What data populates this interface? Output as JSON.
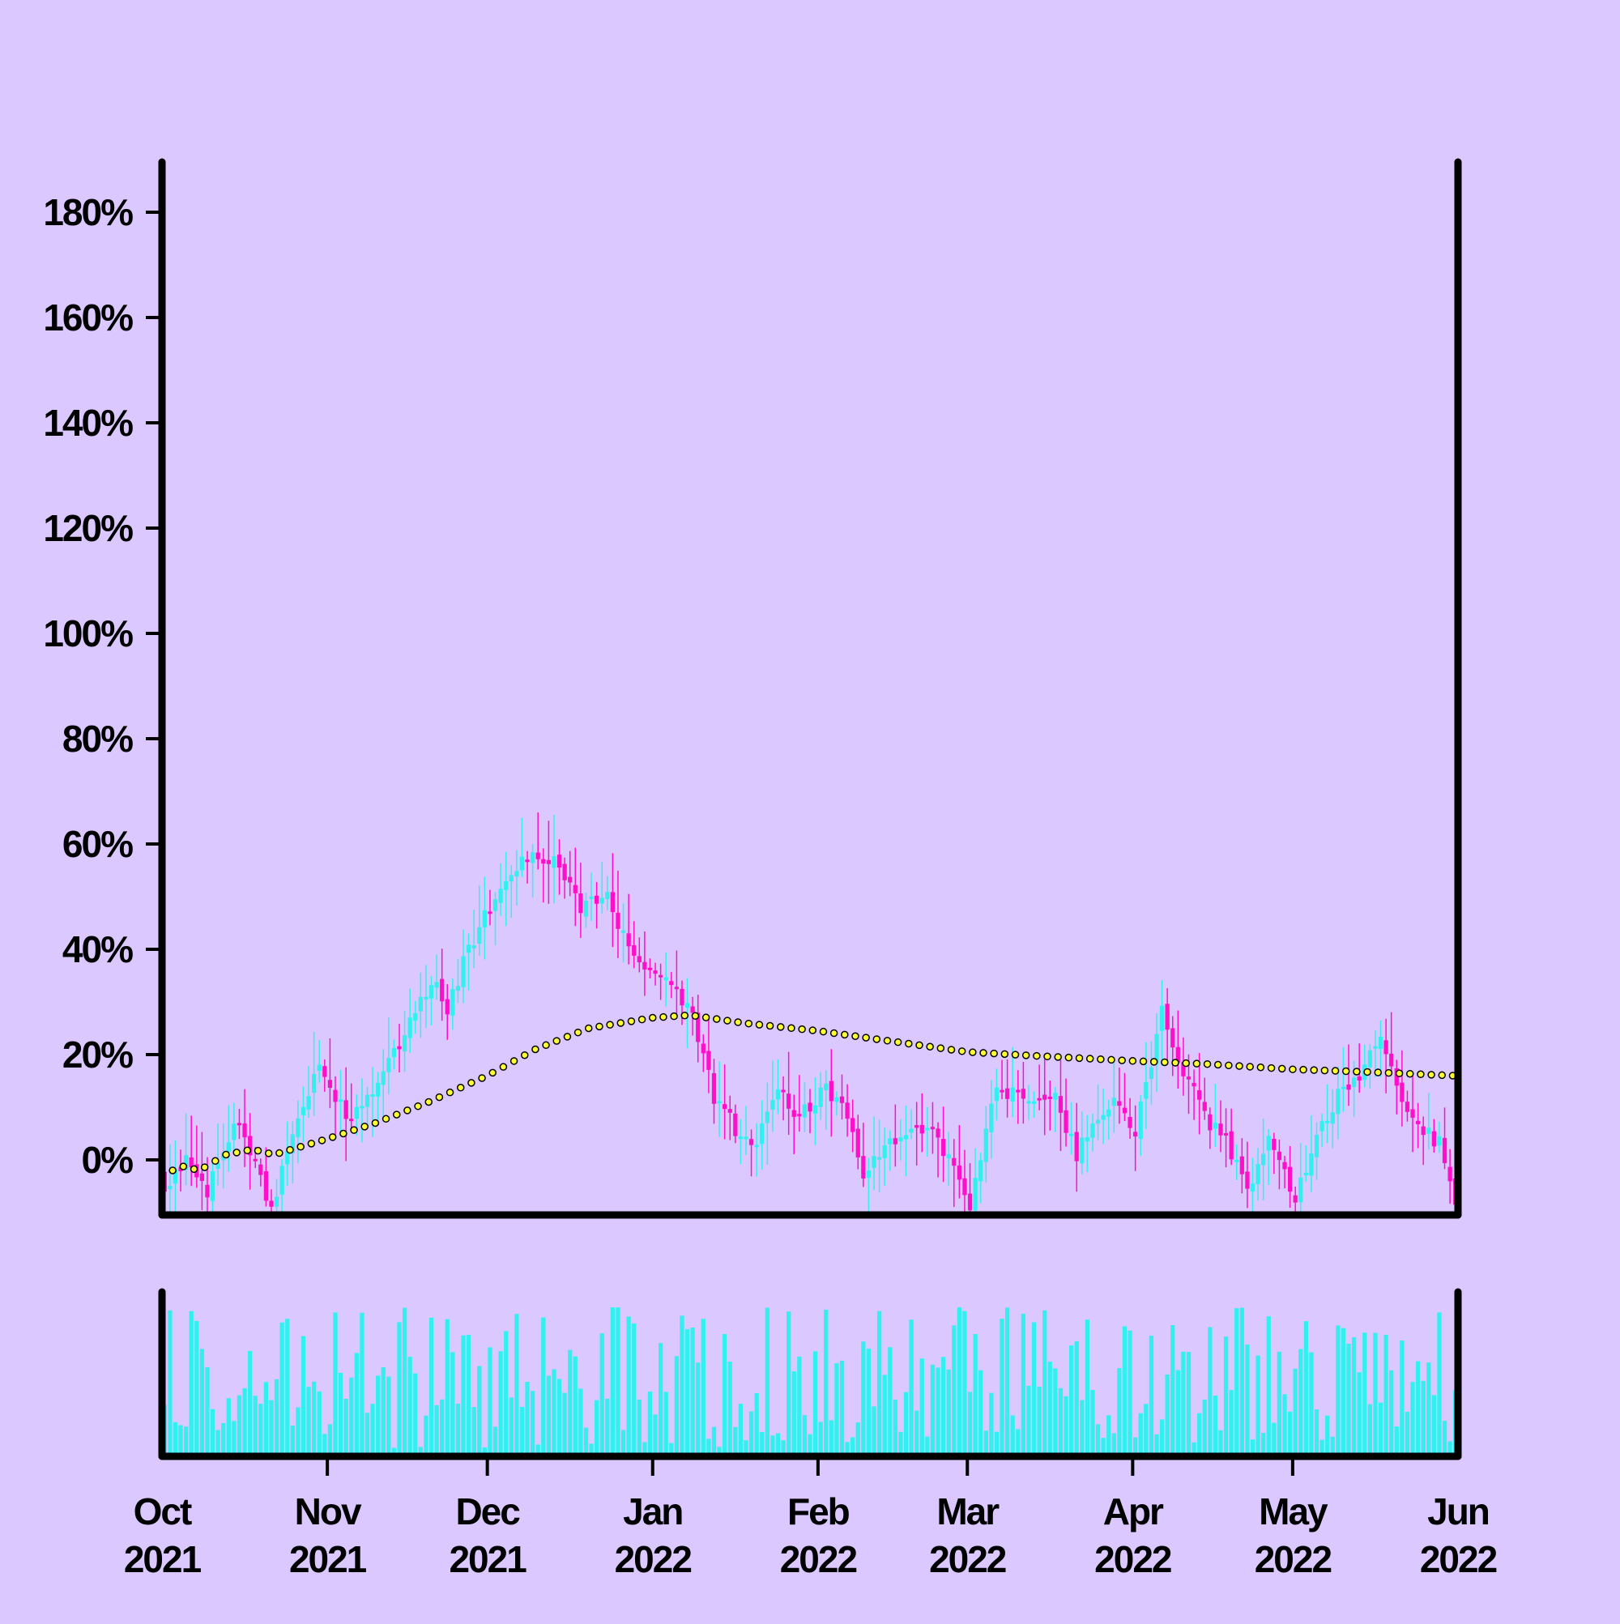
{
  "chart_data": {
    "type": "candlestick",
    "title": "",
    "xlabel": "",
    "ylabel": "",
    "x_range": [
      "2021-10-01",
      "2022-06-01"
    ],
    "ylim": [
      -10,
      190
    ],
    "y_ticks": [
      {
        "value": 0,
        "label": "0%"
      },
      {
        "value": 20,
        "label": "20%"
      },
      {
        "value": 40,
        "label": "40%"
      },
      {
        "value": 60,
        "label": "60%"
      },
      {
        "value": 80,
        "label": "80%"
      },
      {
        "value": 100,
        "label": "100%"
      },
      {
        "value": 120,
        "label": "120%"
      },
      {
        "value": 140,
        "label": "140%"
      },
      {
        "value": 160,
        "label": "160%"
      },
      {
        "value": 180,
        "label": "180%"
      }
    ],
    "x_ticks": [
      {
        "date": "2021-10-01",
        "month": "Oct",
        "year": "2021"
      },
      {
        "date": "2021-11-01",
        "month": "Nov",
        "year": "2021"
      },
      {
        "date": "2021-12-01",
        "month": "Dec",
        "year": "2021"
      },
      {
        "date": "2022-01-01",
        "month": "Jan",
        "year": "2022"
      },
      {
        "date": "2022-02-01",
        "month": "Feb",
        "year": "2022"
      },
      {
        "date": "2022-03-01",
        "month": "Mar",
        "year": "2022"
      },
      {
        "date": "2022-04-01",
        "month": "Apr",
        "year": "2022"
      },
      {
        "date": "2022-05-01",
        "month": "May",
        "year": "2022"
      },
      {
        "date": "2022-06-01",
        "month": "Jun",
        "year": "2022"
      }
    ],
    "grid": false,
    "legend": "none",
    "close_anchors": [
      {
        "date": "2021-10-01",
        "value": -6
      },
      {
        "date": "2021-10-05",
        "value": 1
      },
      {
        "date": "2021-10-09",
        "value": -6
      },
      {
        "date": "2021-10-14",
        "value": 7
      },
      {
        "date": "2021-10-18",
        "value": 0
      },
      {
        "date": "2021-10-21",
        "value": -10
      },
      {
        "date": "2021-10-25",
        "value": 5
      },
      {
        "date": "2021-10-30",
        "value": 19
      },
      {
        "date": "2021-11-04",
        "value": 8
      },
      {
        "date": "2021-11-09",
        "value": 13
      },
      {
        "date": "2021-11-16",
        "value": 26
      },
      {
        "date": "2021-11-20",
        "value": 34
      },
      {
        "date": "2021-11-23",
        "value": 29
      },
      {
        "date": "2021-11-27",
        "value": 40
      },
      {
        "date": "2021-12-01",
        "value": 48
      },
      {
        "date": "2021-12-06",
        "value": 56
      },
      {
        "date": "2021-12-09",
        "value": 58
      },
      {
        "date": "2021-12-14",
        "value": 56
      },
      {
        "date": "2021-12-18",
        "value": 48
      },
      {
        "date": "2021-12-23",
        "value": 50
      },
      {
        "date": "2021-12-28",
        "value": 38
      },
      {
        "date": "2022-01-04",
        "value": 33
      },
      {
        "date": "2022-01-08",
        "value": 27
      },
      {
        "date": "2022-01-12",
        "value": 12
      },
      {
        "date": "2022-01-16",
        "value": 6
      },
      {
        "date": "2022-01-20",
        "value": 3
      },
      {
        "date": "2022-01-24",
        "value": 14
      },
      {
        "date": "2022-01-28",
        "value": 8
      },
      {
        "date": "2022-02-02",
        "value": 14
      },
      {
        "date": "2022-02-06",
        "value": 8
      },
      {
        "date": "2022-02-09",
        "value": -4
      },
      {
        "date": "2022-02-13",
        "value": 4
      },
      {
        "date": "2022-02-18",
        "value": 5
      },
      {
        "date": "2022-02-22",
        "value": 5
      },
      {
        "date": "2022-02-26",
        "value": -2
      },
      {
        "date": "2022-03-01",
        "value": -10
      },
      {
        "date": "2022-03-05",
        "value": 12
      },
      {
        "date": "2022-03-09",
        "value": 13
      },
      {
        "date": "2022-03-13",
        "value": 10
      },
      {
        "date": "2022-03-17",
        "value": 12
      },
      {
        "date": "2022-03-21",
        "value": 1
      },
      {
        "date": "2022-03-25",
        "value": 9
      },
      {
        "date": "2022-03-28",
        "value": 12
      },
      {
        "date": "2022-04-01",
        "value": 5
      },
      {
        "date": "2022-04-06",
        "value": 28
      },
      {
        "date": "2022-04-10",
        "value": 17
      },
      {
        "date": "2022-04-14",
        "value": 8
      },
      {
        "date": "2022-04-18",
        "value": 4
      },
      {
        "date": "2022-04-22",
        "value": -6
      },
      {
        "date": "2022-04-26",
        "value": 4
      },
      {
        "date": "2022-05-01",
        "value": -8
      },
      {
        "date": "2022-05-05",
        "value": 5
      },
      {
        "date": "2022-05-09",
        "value": 12
      },
      {
        "date": "2022-05-13",
        "value": 16
      },
      {
        "date": "2022-05-17",
        "value": 24
      },
      {
        "date": "2022-05-21",
        "value": 12
      },
      {
        "date": "2022-05-25",
        "value": 6
      },
      {
        "date": "2022-05-28",
        "value": 3
      },
      {
        "date": "2022-05-31",
        "value": -8
      }
    ],
    "moving_average_anchors": [
      {
        "date": "2021-10-02",
        "value": -3
      },
      {
        "date": "2021-10-04",
        "value": -1
      },
      {
        "date": "2021-10-08",
        "value": -2
      },
      {
        "date": "2021-10-13",
        "value": 1
      },
      {
        "date": "2021-10-18",
        "value": 2
      },
      {
        "date": "2021-10-22",
        "value": 1
      },
      {
        "date": "2021-11-01",
        "value": 4
      },
      {
        "date": "2021-11-10",
        "value": 7
      },
      {
        "date": "2021-11-20",
        "value": 11
      },
      {
        "date": "2021-12-01",
        "value": 16
      },
      {
        "date": "2021-12-10",
        "value": 21
      },
      {
        "date": "2021-12-20",
        "value": 25
      },
      {
        "date": "2022-01-01",
        "value": 27
      },
      {
        "date": "2022-01-08",
        "value": 27.5
      },
      {
        "date": "2022-01-18",
        "value": 26
      },
      {
        "date": "2022-02-01",
        "value": 24.5
      },
      {
        "date": "2022-02-15",
        "value": 22.5
      },
      {
        "date": "2022-03-01",
        "value": 20.5
      },
      {
        "date": "2022-03-15",
        "value": 19.7
      },
      {
        "date": "2022-04-01",
        "value": 18.8
      },
      {
        "date": "2022-04-15",
        "value": 18.2
      },
      {
        "date": "2022-05-01",
        "value": 17.2
      },
      {
        "date": "2022-05-15",
        "value": 16.7
      },
      {
        "date": "2022-05-31",
        "value": 16
      }
    ],
    "colors": {
      "background": "#dac8ff",
      "up": "#33f0f0",
      "down": "#ff10c8",
      "moving_average_fill": "#ffff33",
      "moving_average_stroke": "#000000",
      "volume": "#33f0f0",
      "axis": "#000000"
    }
  }
}
